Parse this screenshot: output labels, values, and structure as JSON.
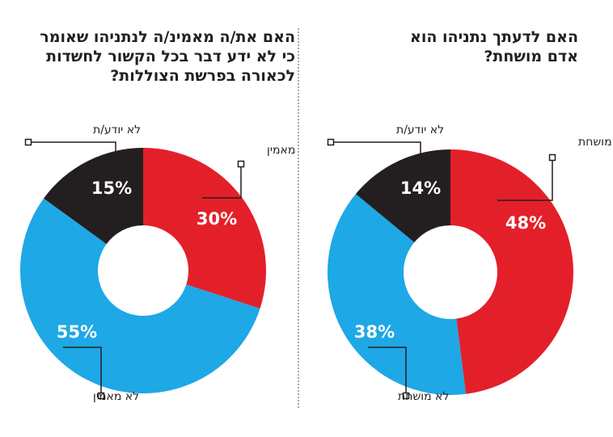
{
  "chart_data": [
    {
      "type": "pie",
      "donut": true,
      "title": "האם את/ה מאמינ/ה לנתניהו שאומר כי לא ידע דבר בכל הקשור לחשדות לכאורה בפרשת הצוללות?",
      "slices": [
        {
          "label": "מאמין",
          "value": 30,
          "display": "30%",
          "color": "#e3202a"
        },
        {
          "label": "לא מאמין",
          "value": 55,
          "display": "55%",
          "color": "#1ea8e6"
        },
        {
          "label": "לא יודע/ת",
          "value": 15,
          "display": "15%",
          "color": "#231f20"
        }
      ]
    },
    {
      "type": "pie",
      "donut": true,
      "title": "האם לדעתך נתניהו הוא אדם מושחת?",
      "slices": [
        {
          "label": "מושחת",
          "value": 48,
          "display": "48%",
          "color": "#e3202a"
        },
        {
          "label": "לא מושחת",
          "value": 38,
          "display": "38%",
          "color": "#1ea8e6"
        },
        {
          "label": "לא יודע/ת",
          "value": 14,
          "display": "14%",
          "color": "#231f20"
        }
      ]
    }
  ]
}
